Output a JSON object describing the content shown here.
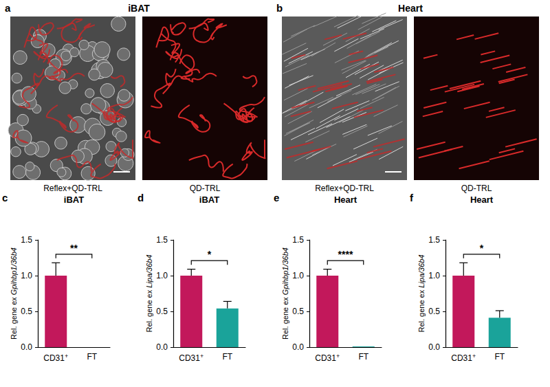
{
  "image_panels": [
    {
      "panel": "a",
      "title": "iBAT",
      "captions": [
        "Reflex+QD-TRL",
        "QD-TRL"
      ]
    },
    {
      "panel": "b",
      "title": "Heart",
      "captions": [
        "Reflex+QD-TRL",
        "QD-TRL"
      ]
    }
  ],
  "chart_data": [
    {
      "panel": "c",
      "type": "bar",
      "title": "iBAT",
      "y_label": "Rel. gene ex Gpihbp1/36b4",
      "categories": [
        "CD31+",
        "FT"
      ],
      "values": [
        1.0,
        0.0
      ],
      "errors": [
        0.18,
        0.0
      ],
      "colors": [
        "#c2185b",
        "#1aa39a"
      ],
      "ylim": [
        0,
        1.5
      ],
      "yticks": [
        {
          "value": 0,
          "label": "0.0"
        },
        {
          "value": 0.5,
          "label": "0.5"
        },
        {
          "value": 1,
          "label": "1.0"
        },
        {
          "value": 1.5,
          "label": "1.5"
        }
      ],
      "annotations": [
        "**"
      ],
      "grid": false
    },
    {
      "panel": "d",
      "type": "bar",
      "title": "iBAT",
      "y_label": "Rel. gene ex Lipa/36b4",
      "categories": [
        "CD31+",
        "FT"
      ],
      "values": [
        1.0,
        0.54
      ],
      "errors": [
        0.09,
        0.1
      ],
      "colors": [
        "#c2185b",
        "#1aa39a"
      ],
      "ylim": [
        0,
        1.5
      ],
      "yticks": [
        {
          "value": 0,
          "label": "0.0"
        },
        {
          "value": 0.5,
          "label": "0.5"
        },
        {
          "value": 1,
          "label": "1.0"
        },
        {
          "value": 1.5,
          "label": "1.5"
        }
      ],
      "annotations": [
        "*"
      ],
      "grid": false
    },
    {
      "panel": "e",
      "type": "bar",
      "title": "Heart",
      "y_label": "Rel. gene ex Gpihbp1/36b4",
      "categories": [
        "CD31+",
        "FT"
      ],
      "values": [
        1.0,
        0.01
      ],
      "errors": [
        0.09,
        0.0
      ],
      "colors": [
        "#c2185b",
        "#1aa39a"
      ],
      "ylim": [
        0,
        1.5
      ],
      "yticks": [
        {
          "value": 0,
          "label": "0.0"
        },
        {
          "value": 0.5,
          "label": "0.5"
        },
        {
          "value": 1,
          "label": "1.0"
        },
        {
          "value": 1.5,
          "label": "1.5"
        }
      ],
      "annotations": [
        "****"
      ],
      "grid": false
    },
    {
      "panel": "f",
      "type": "bar",
      "title": "Heart",
      "y_label": "Rel. gene ex Lipa/36b4",
      "categories": [
        "CD31+",
        "FT"
      ],
      "values": [
        1.0,
        0.41
      ],
      "errors": [
        0.18,
        0.1
      ],
      "colors": [
        "#c2185b",
        "#1aa39a"
      ],
      "ylim": [
        0,
        1.5
      ],
      "yticks": [
        {
          "value": 0,
          "label": "0.0"
        },
        {
          "value": 0.5,
          "label": "0.5"
        },
        {
          "value": 1,
          "label": "1.0"
        },
        {
          "value": 1.5,
          "label": "1.5"
        }
      ],
      "annotations": [
        "*"
      ],
      "grid": false
    }
  ]
}
